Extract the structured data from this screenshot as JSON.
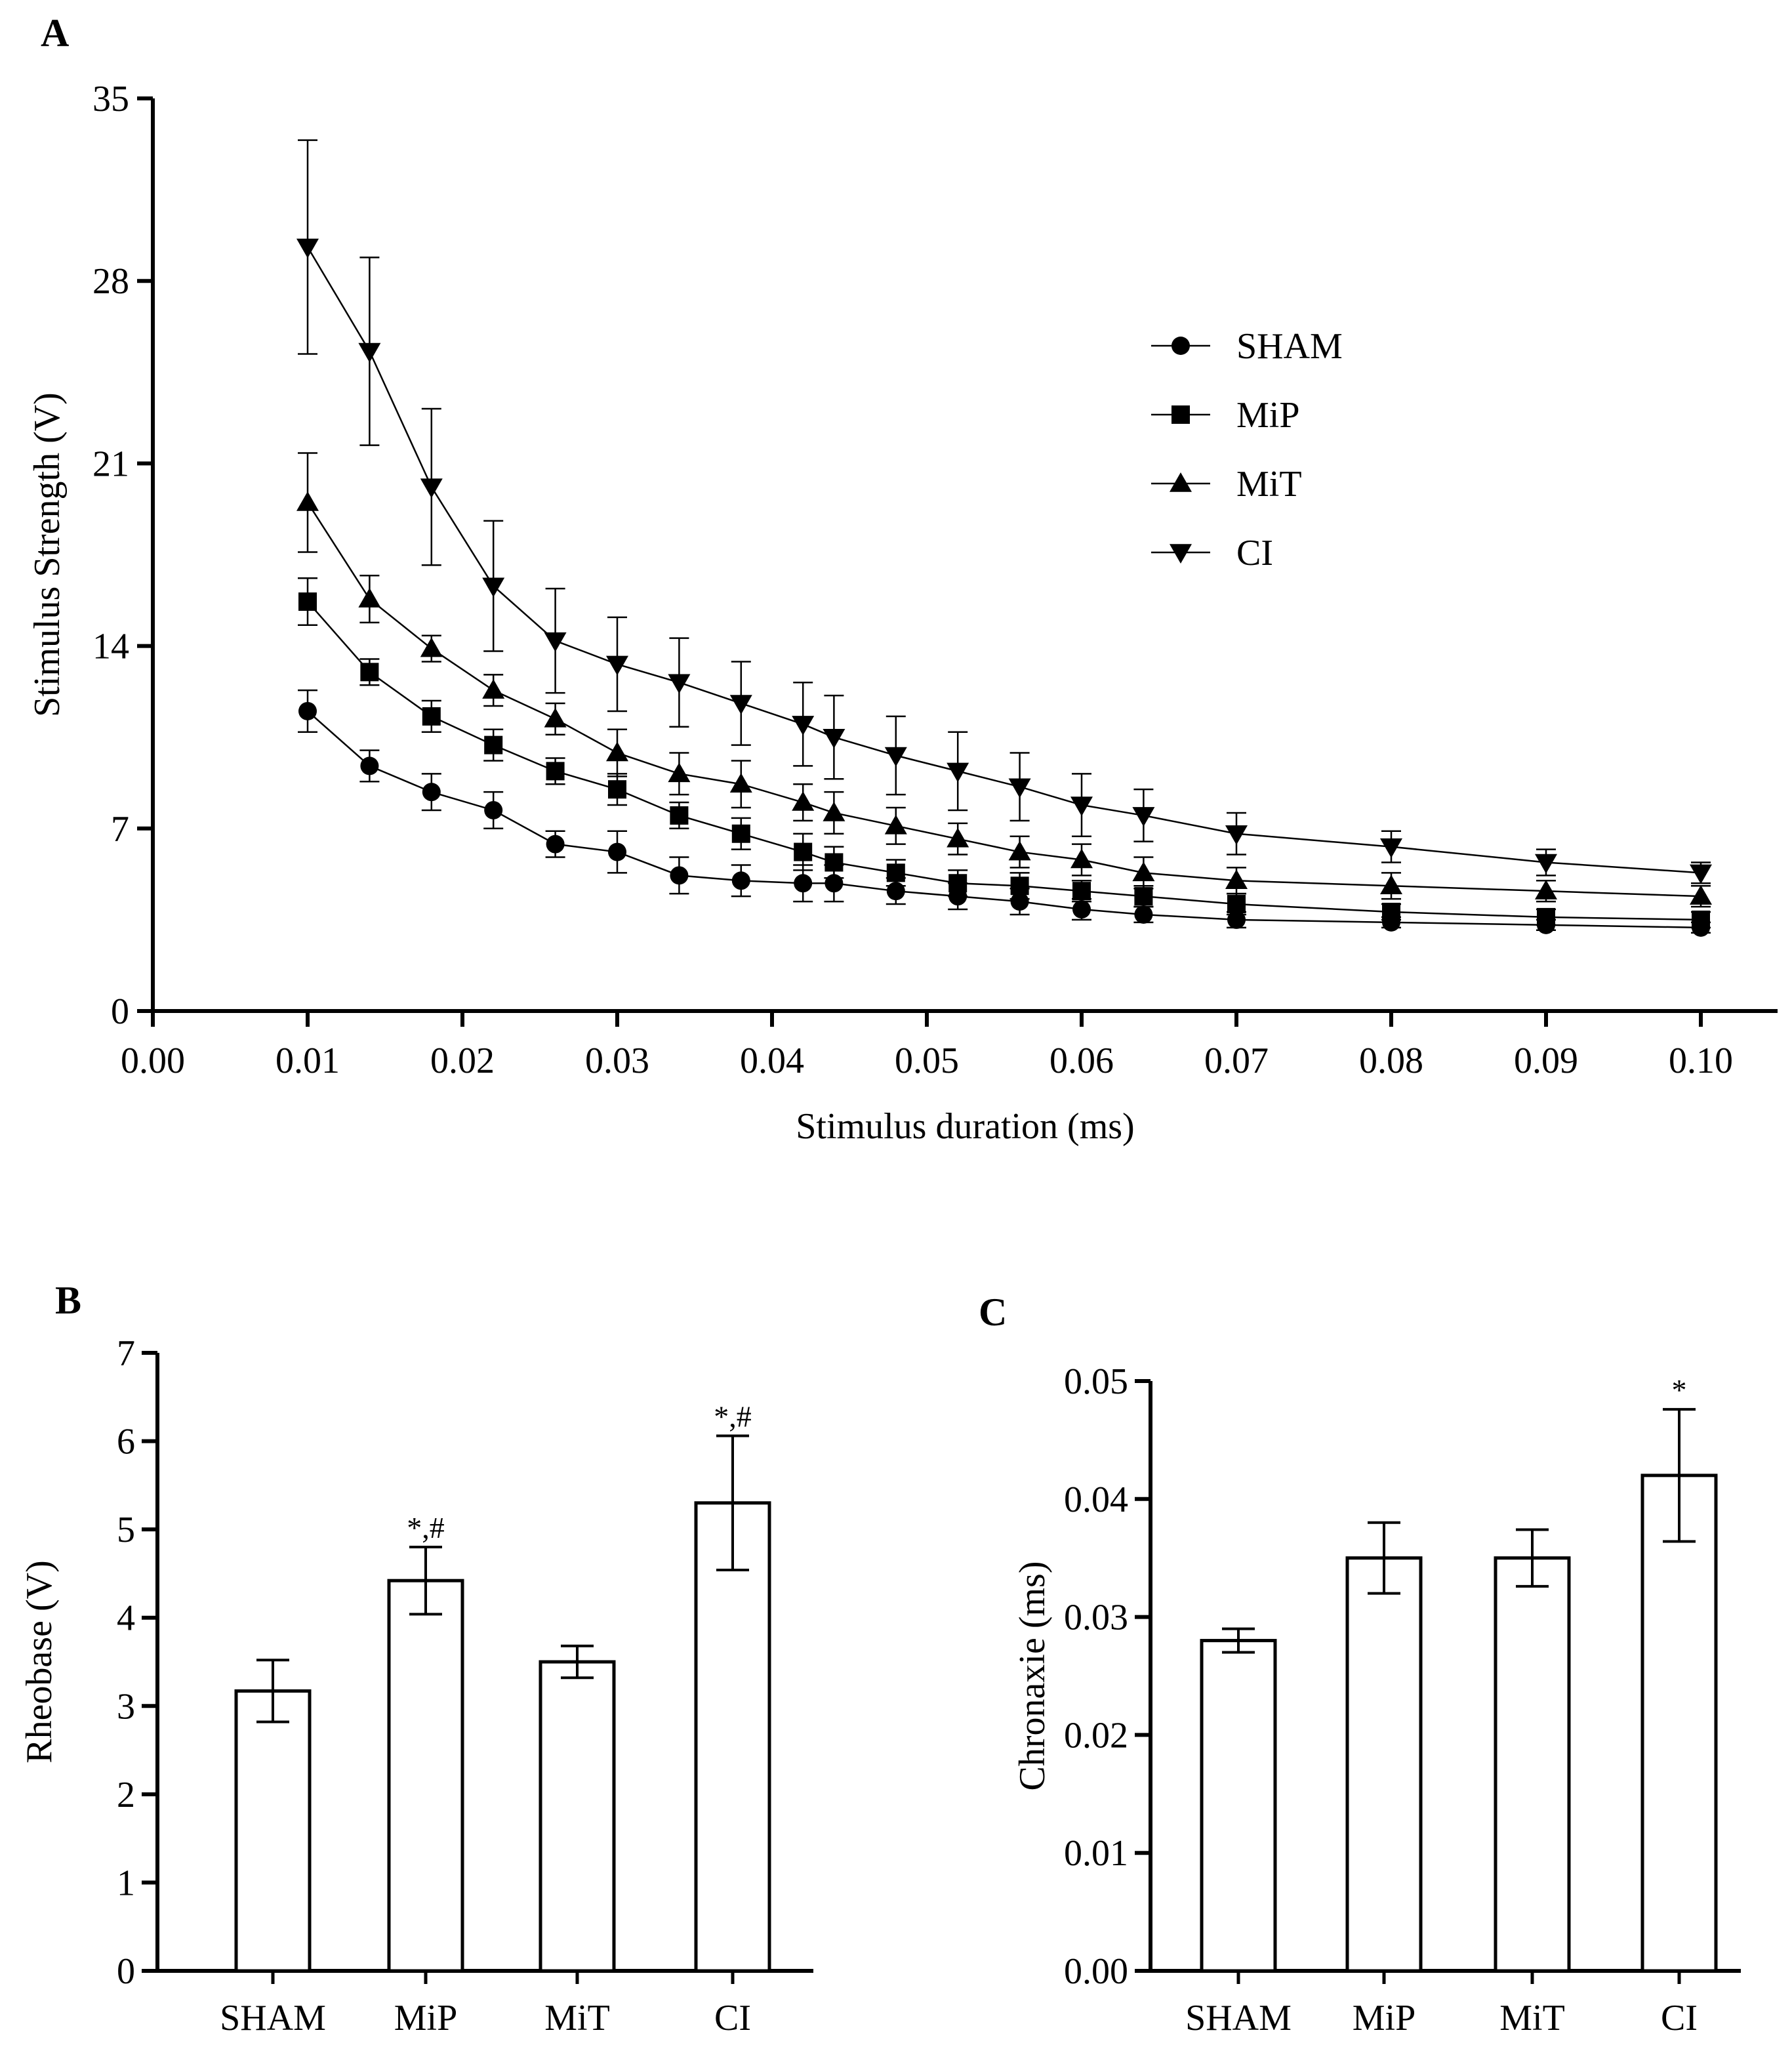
{
  "chart_data": [
    {
      "panel": "A",
      "type": "line",
      "xlabel": "Stimulus duration (ms)",
      "ylabel": "Stimulus Strength (V)",
      "xlim": [
        0.0,
        0.105
      ],
      "ylim": [
        0,
        35
      ],
      "xticks": [
        "0.00",
        "0.01",
        "0.02",
        "0.03",
        "0.04",
        "0.05",
        "0.06",
        "0.07",
        "0.08",
        "0.09",
        "0.10"
      ],
      "yticks": [
        "0",
        "7",
        "14",
        "21",
        "28",
        "35"
      ],
      "legend_position": "top-right",
      "x": [
        0.01,
        0.014,
        0.018,
        0.022,
        0.026,
        0.03,
        0.034,
        0.038,
        0.042,
        0.044,
        0.048,
        0.052,
        0.056,
        0.06,
        0.064,
        0.07,
        0.08,
        0.09,
        0.1
      ],
      "series": [
        {
          "name": "SHAM",
          "marker": "circle",
          "values": [
            11.5,
            9.4,
            8.4,
            7.7,
            6.4,
            6.1,
            5.2,
            5.0,
            4.9,
            4.9,
            4.6,
            4.4,
            4.2,
            3.9,
            3.7,
            3.5,
            3.4,
            3.3,
            3.2
          ],
          "errors": [
            0.8,
            0.6,
            0.7,
            0.7,
            0.5,
            0.8,
            0.7,
            0.6,
            0.7,
            0.7,
            0.5,
            0.5,
            0.5,
            0.4,
            0.3,
            0.3,
            0.2,
            0.2,
            0.2
          ]
        },
        {
          "name": "MiP",
          "marker": "square",
          "values": [
            15.7,
            13.0,
            11.3,
            10.2,
            9.2,
            8.5,
            7.5,
            6.8,
            6.1,
            5.7,
            5.3,
            4.9,
            4.8,
            4.6,
            4.4,
            4.1,
            3.8,
            3.6,
            3.5
          ],
          "errors": [
            0.9,
            0.5,
            0.6,
            0.6,
            0.5,
            0.6,
            0.5,
            0.6,
            0.7,
            0.6,
            0.5,
            0.5,
            0.5,
            0.4,
            0.4,
            0.4,
            0.3,
            0.3,
            0.3
          ]
        },
        {
          "name": "MiT",
          "marker": "triangle-up",
          "values": [
            19.5,
            15.8,
            13.9,
            12.3,
            11.2,
            9.9,
            9.1,
            8.7,
            8.0,
            7.6,
            7.1,
            6.6,
            6.1,
            5.8,
            5.3,
            5.0,
            4.8,
            4.6,
            4.4
          ],
          "errors": [
            1.9,
            0.9,
            0.5,
            0.6,
            0.6,
            0.9,
            0.8,
            0.9,
            0.7,
            0.8,
            0.7,
            0.6,
            0.6,
            0.6,
            0.6,
            0.5,
            0.5,
            0.4,
            0.4
          ]
        },
        {
          "name": "CI",
          "marker": "triangle-down",
          "values": [
            29.3,
            25.3,
            20.1,
            16.3,
            14.2,
            13.3,
            12.6,
            11.8,
            11.0,
            10.5,
            9.8,
            9.2,
            8.6,
            7.9,
            7.5,
            6.8,
            6.3,
            5.7,
            5.3
          ],
          "errors": [
            4.1,
            3.6,
            3.0,
            2.5,
            2.0,
            1.8,
            1.7,
            1.6,
            1.6,
            1.6,
            1.5,
            1.5,
            1.3,
            1.2,
            1.0,
            0.8,
            0.6,
            0.5,
            0.4
          ]
        }
      ]
    },
    {
      "panel": "B",
      "type": "bar",
      "xlabel": "",
      "ylabel": "Rheobase (V)",
      "ylim": [
        0,
        7
      ],
      "yticks": [
        "0",
        "1",
        "2",
        "3",
        "4",
        "5",
        "6",
        "7"
      ],
      "categories": [
        "SHAM",
        "MiP",
        "MiT",
        "CI"
      ],
      "values": [
        3.17,
        4.42,
        3.5,
        5.3
      ],
      "errors": [
        0.35,
        0.38,
        0.18,
        0.76
      ],
      "annotations": [
        "",
        "*,#",
        "",
        "*,#"
      ]
    },
    {
      "panel": "C",
      "type": "bar",
      "xlabel": "",
      "ylabel": "Chronaxie (ms)",
      "ylim": [
        0,
        0.05
      ],
      "yticks": [
        "0.00",
        "0.01",
        "0.02",
        "0.03",
        "0.04",
        "0.05"
      ],
      "categories": [
        "SHAM",
        "MiP",
        "MiT",
        "CI"
      ],
      "values": [
        0.028,
        0.035,
        0.035,
        0.042
      ],
      "errors": [
        0.001,
        0.003,
        0.0024,
        0.0056
      ],
      "annotations": [
        "",
        "",
        "",
        "*"
      ]
    }
  ]
}
